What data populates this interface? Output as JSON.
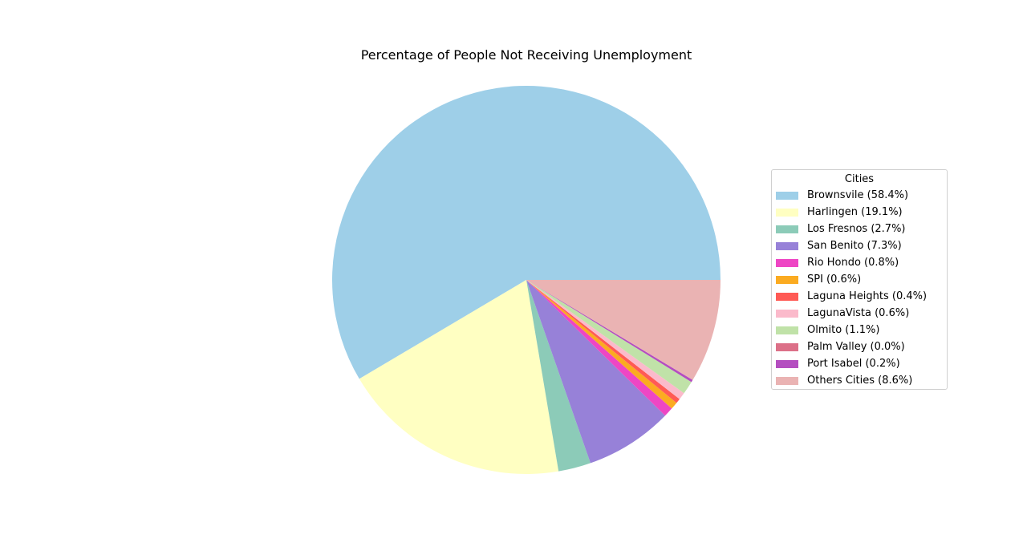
{
  "chart_data": {
    "type": "pie",
    "title": "Percentage of People Not Receiving Unemployment",
    "legend_title": "Cities",
    "legend_position": "center-right",
    "start_angle_deg": 0,
    "direction": "counterclockwise",
    "slices": [
      {
        "label": "Brownsvile (58.4%)",
        "value": 58.4,
        "color": "#9ecfe8"
      },
      {
        "label": "Harlingen (19.1%)",
        "value": 19.1,
        "color": "#ffffc2"
      },
      {
        "label": "Los Fresnos (2.7%)",
        "value": 2.7,
        "color": "#8ccbb8"
      },
      {
        "label": "San Benito (7.3%)",
        "value": 7.3,
        "color": "#9781d8"
      },
      {
        "label": "Rio Hondo (0.8%)",
        "value": 0.8,
        "color": "#ee46c4"
      },
      {
        "label": "SPI (0.6%)",
        "value": 0.6,
        "color": "#fbab21"
      },
      {
        "label": "Laguna Heights (0.4%)",
        "value": 0.4,
        "color": "#ff5a55"
      },
      {
        "label": "LagunaVista (0.6%)",
        "value": 0.6,
        "color": "#fbbacb"
      },
      {
        "label": "Olmito (1.1%)",
        "value": 1.1,
        "color": "#c0e2a8"
      },
      {
        "label": "Palm Valley (0.0%)",
        "value": 0.0,
        "color": "#dc7088"
      },
      {
        "label": "Port Isabel (0.2%)",
        "value": 0.2,
        "color": "#b44ec0"
      },
      {
        "label": "Others Cities (8.6%)",
        "value": 8.6,
        "color": "#eab3b3"
      }
    ]
  }
}
